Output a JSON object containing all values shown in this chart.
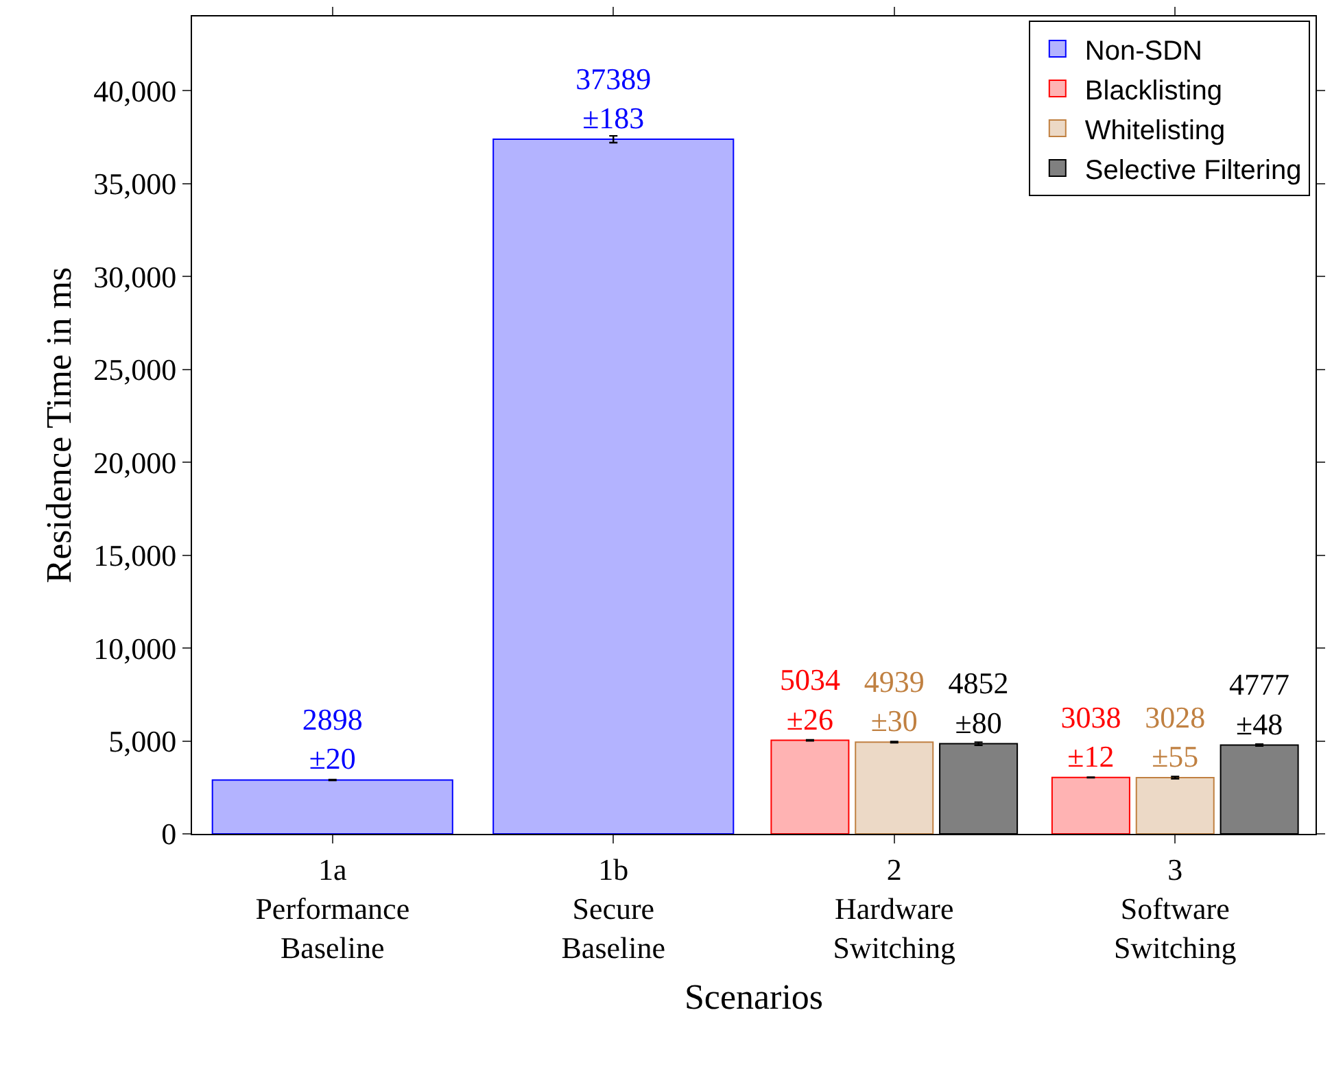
{
  "chart_data": {
    "type": "bar",
    "xlabel": "Scenarios",
    "ylabel": "Residence Time in ms",
    "categories": [
      "1a\nPerformance\nBaseline",
      "1b\nSecure\nBaseline",
      "2\nHardware\nSwitching",
      "3\nSoftware\nSwitching"
    ],
    "series": [
      {
        "name": "Non-SDN",
        "color": "#b3b3ff",
        "values": [
          2898,
          37389,
          null,
          null
        ],
        "errors": [
          20,
          183,
          null,
          null
        ],
        "value_labels": [
          "2898\n±20",
          "37389\n±183",
          null,
          null
        ]
      },
      {
        "name": "Blacklisting",
        "color": "#ffb3b3",
        "values": [
          null,
          null,
          5034,
          3038
        ],
        "errors": [
          null,
          null,
          26,
          12
        ],
        "value_labels": [
          null,
          null,
          "5034\n±26",
          "3038\n±12"
        ]
      },
      {
        "name": "Whitelisting",
        "color": "#ecd9c6",
        "values": [
          null,
          null,
          4939,
          3028
        ],
        "errors": [
          null,
          null,
          30,
          55
        ],
        "value_labels": [
          null,
          null,
          "4939\n±30",
          "3028\n±55"
        ]
      },
      {
        "name": "Selective Filtering",
        "color": "#808080",
        "values": [
          null,
          null,
          4852,
          4777
        ],
        "errors": [
          null,
          null,
          80,
          48
        ],
        "value_labels": [
          null,
          null,
          "4852\n±80",
          "4777\n±48"
        ]
      }
    ],
    "ylim": [
      0,
      44000
    ],
    "yticks": [
      0,
      {
        "value": 5000,
        "label": "5,000"
      },
      {
        "value": 10000,
        "label": "10,000"
      },
      {
        "value": 15000,
        "label": "15,000"
      },
      {
        "value": 20000,
        "label": "20,000"
      },
      {
        "value": 25000,
        "label": "25,000"
      },
      {
        "value": 30000,
        "label": "30,000"
      },
      {
        "value": 35000,
        "label": "35,000"
      },
      {
        "value": 40000,
        "label": "40,000"
      }
    ],
    "legend": "top right"
  }
}
